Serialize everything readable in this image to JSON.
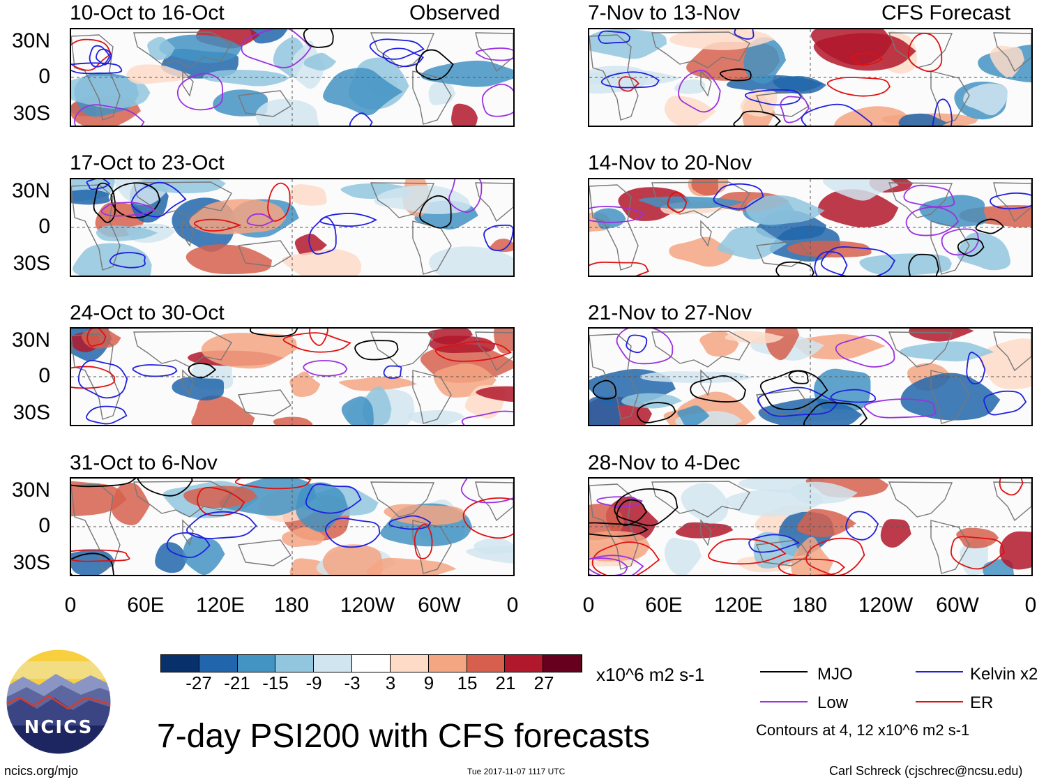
{
  "chart_data": {
    "type": "heatmap",
    "title": "7-day PSI200 with CFS forecasts",
    "variable": "PSI200",
    "units": "x10^6 m2 s-1",
    "x_ticks": [
      "0",
      "60E",
      "120E",
      "180",
      "120W",
      "60W",
      "0"
    ],
    "y_ticks": [
      "30N",
      "0",
      "30S"
    ],
    "columns": [
      {
        "header": "Observed",
        "panels": [
          {
            "period": "10-Oct to 16-Oct"
          },
          {
            "period": "17-Oct to 23-Oct"
          },
          {
            "period": "24-Oct to 30-Oct"
          },
          {
            "period": "31-Oct to 6-Nov"
          }
        ]
      },
      {
        "header": "CFS Forecast",
        "panels": [
          {
            "period": "7-Nov to 13-Nov"
          },
          {
            "period": "14-Nov to 20-Nov"
          },
          {
            "period": "21-Nov to 27-Nov"
          },
          {
            "period": "28-Nov to 4-Dec"
          }
        ]
      }
    ],
    "colorbar": {
      "colors": [
        "#08306b",
        "#2166ac",
        "#4393c3",
        "#92c5de",
        "#d1e5f0",
        "#ffffff",
        "#fddbc7",
        "#f4a582",
        "#d6604d",
        "#b2182b",
        "#67001f"
      ],
      "tick_labels": [
        "-27",
        "-21",
        "-15",
        "-9",
        "-3",
        "3",
        "9",
        "15",
        "21",
        "27"
      ]
    },
    "contour_legend": {
      "items": [
        {
          "label": "MJO",
          "color": "#000000"
        },
        {
          "label": "Kelvin x2",
          "color": "#1f1fe0"
        },
        {
          "label": "Low",
          "color": "#9b30e0"
        },
        {
          "label": "ER",
          "color": "#e01010"
        }
      ],
      "note": "Contours at 4, 12 x10^6 m2 s-1"
    }
  },
  "logo": {
    "text": "NCICS"
  },
  "footer": {
    "left": "ncics.org/mjo",
    "center": "Tue 2017-11-07 1117 UTC",
    "right": "Carl Schreck (cjschrec@ncsu.edu)"
  }
}
